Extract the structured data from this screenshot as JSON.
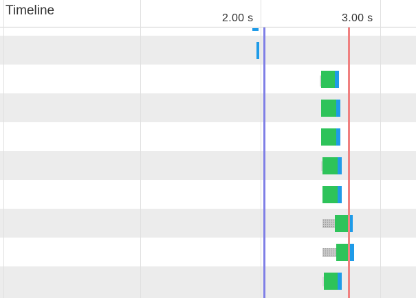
{
  "header": {
    "title": "Timeline",
    "ticks": [
      {
        "label": "2.00 s"
      },
      {
        "label": "3.00 s"
      }
    ]
  },
  "markers": {
    "dom_content_loaded_color": "#7f7fe6",
    "load_color": "#f08080"
  },
  "colors": {
    "waiting": "#2ec35a",
    "receiving": "#1f9be8",
    "row_alt": "#ececec",
    "row": "#ffffff"
  }
}
